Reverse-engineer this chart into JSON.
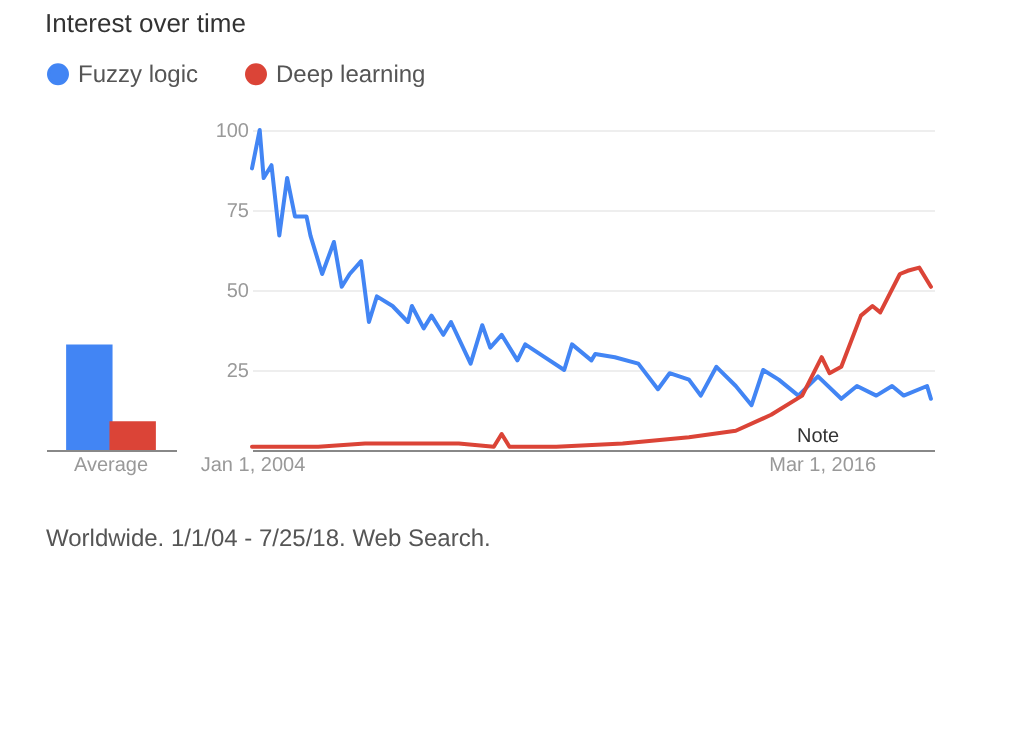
{
  "chart_data": [
    {
      "type": "bar",
      "title": "Interest over time",
      "legend": "top",
      "categories": [
        "Average"
      ],
      "ylim": [
        0,
        100
      ],
      "tick_labels": "x",
      "series": [
        {
          "name": "Fuzzy logic",
          "color": "#4285f4",
          "values": [
            33
          ]
        },
        {
          "name": "Deep learning",
          "color": "#db4437",
          "values": [
            9
          ]
        }
      ]
    },
    {
      "type": "line",
      "legend": "top",
      "grid": "y",
      "marker": "none",
      "line_style": "solid",
      "xlim": [
        "2004-01-01",
        "2018-07-25"
      ],
      "ylim": [
        0,
        100
      ],
      "xticks": [
        {
          "value": "2004-01-01",
          "label": "Jan 1, 2004"
        },
        {
          "value": "2016-03-01",
          "label": "Mar 1, 2016"
        }
      ],
      "yticks": [
        25,
        50,
        75,
        100
      ],
      "annotations": [
        "Note",
        "Worldwide. 1/1/04 - 7/25/18. Web Search."
      ],
      "series": [
        {
          "name": "Fuzzy logic",
          "color": "#4285f4",
          "x": [
            "2004-01",
            "2004-03",
            "2004-04",
            "2004-06",
            "2004-08",
            "2004-10",
            "2004-12",
            "2005-03",
            "2005-04",
            "2005-07",
            "2005-10",
            "2005-12",
            "2006-02",
            "2006-05",
            "2006-07",
            "2006-09",
            "2007-01",
            "2007-05",
            "2007-06",
            "2007-09",
            "2007-11",
            "2008-02",
            "2008-04",
            "2008-09",
            "2008-12",
            "2009-02",
            "2009-05",
            "2009-09",
            "2009-11",
            "2010-04",
            "2010-09",
            "2010-11",
            "2011-04",
            "2011-05",
            "2011-10",
            "2012-04",
            "2012-09",
            "2012-12",
            "2013-05",
            "2013-08",
            "2013-12",
            "2014-05",
            "2014-09",
            "2014-12",
            "2015-04",
            "2015-09",
            "2016-02",
            "2016-08",
            "2016-12",
            "2017-05",
            "2017-09",
            "2017-12",
            "2018-06",
            "2018-07"
          ],
          "values": [
            88,
            100,
            85,
            89,
            67,
            85,
            73,
            73,
            67,
            55,
            65,
            51,
            55,
            59,
            40,
            48,
            45,
            40,
            45,
            38,
            42,
            36,
            40,
            27,
            39,
            32,
            36,
            28,
            33,
            29,
            25,
            33,
            28,
            30,
            29,
            27,
            19,
            24,
            22,
            17,
            26,
            20,
            14,
            25,
            22,
            17,
            23,
            16,
            20,
            17,
            20,
            17,
            20,
            16
          ]
        },
        {
          "name": "Deep learning",
          "color": "#db4437",
          "x": [
            "2004-01",
            "2005-06",
            "2006-06",
            "2007-06",
            "2008-06",
            "2009-03",
            "2009-05",
            "2009-07",
            "2010-07",
            "2011-12",
            "2013-05",
            "2014-05",
            "2015-02",
            "2015-10",
            "2016-03",
            "2016-05",
            "2016-08",
            "2017-01",
            "2017-04",
            "2017-06",
            "2017-11",
            "2018-01",
            "2018-04",
            "2018-07"
          ],
          "values": [
            1,
            1,
            2,
            2,
            2,
            1,
            5,
            1,
            1,
            2,
            4,
            6,
            11,
            17,
            29,
            24,
            26,
            42,
            45,
            43,
            55,
            56,
            57,
            51
          ]
        }
      ]
    }
  ]
}
